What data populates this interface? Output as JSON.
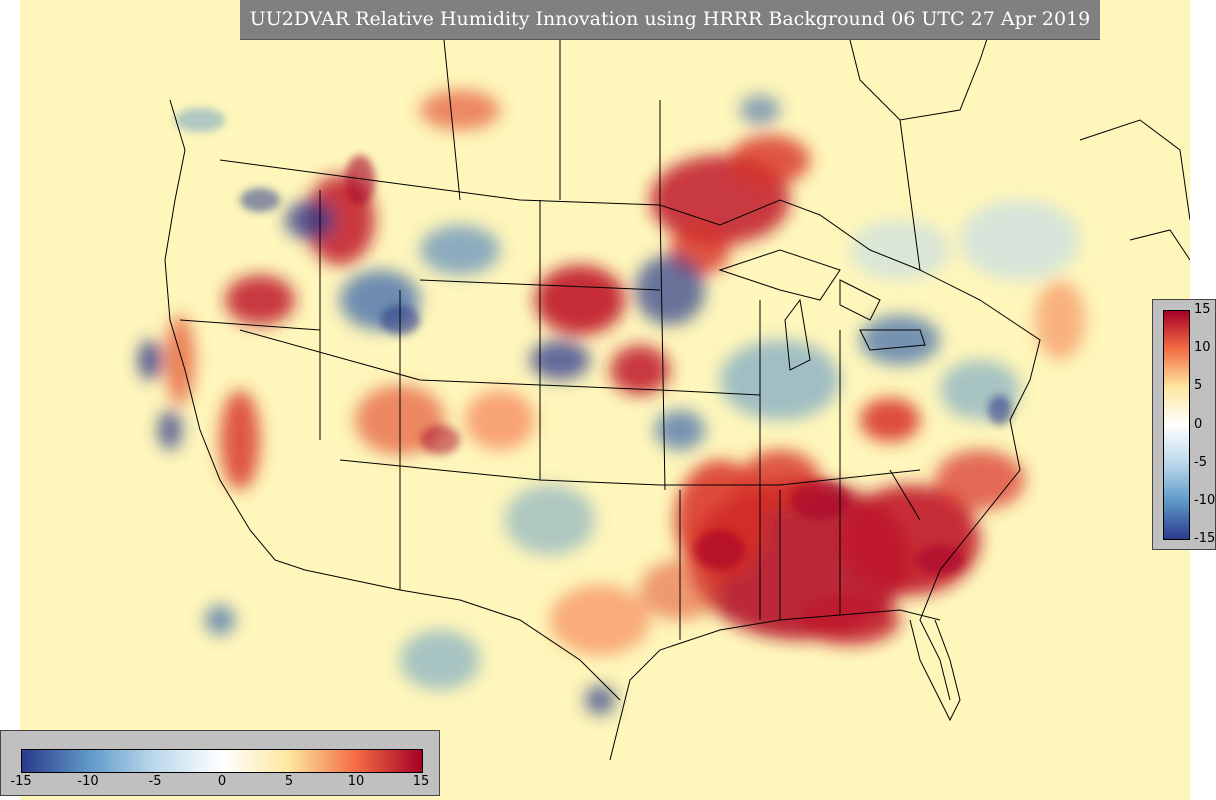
{
  "title": "UU2DVAR Relative Humidity Innovation using HRRR Background 06 UTC 27 Apr 2019",
  "colorbar": {
    "min": -15,
    "max": 15,
    "vertical_ticks": [
      "15",
      "10",
      "5",
      "0",
      "-5",
      "-10",
      "-15"
    ],
    "horizontal_ticks": [
      "-15",
      "-10",
      "-5",
      "0",
      "5",
      "10",
      "15"
    ],
    "colors": {
      "negative_max": "#2b3a8c",
      "negative_mid": "#5f99c8",
      "negative_low": "#bcd9ec",
      "zero": "#ffffff",
      "positive_low": "#fde7a0",
      "positive_mid": "#f46d43",
      "positive_max": "#a50026"
    }
  },
  "colors": {
    "background_field": "#fef6bb",
    "panel_gray": "#808080",
    "colorbar_frame": "#c0c0c0",
    "boundary_lines": "#000000"
  }
}
